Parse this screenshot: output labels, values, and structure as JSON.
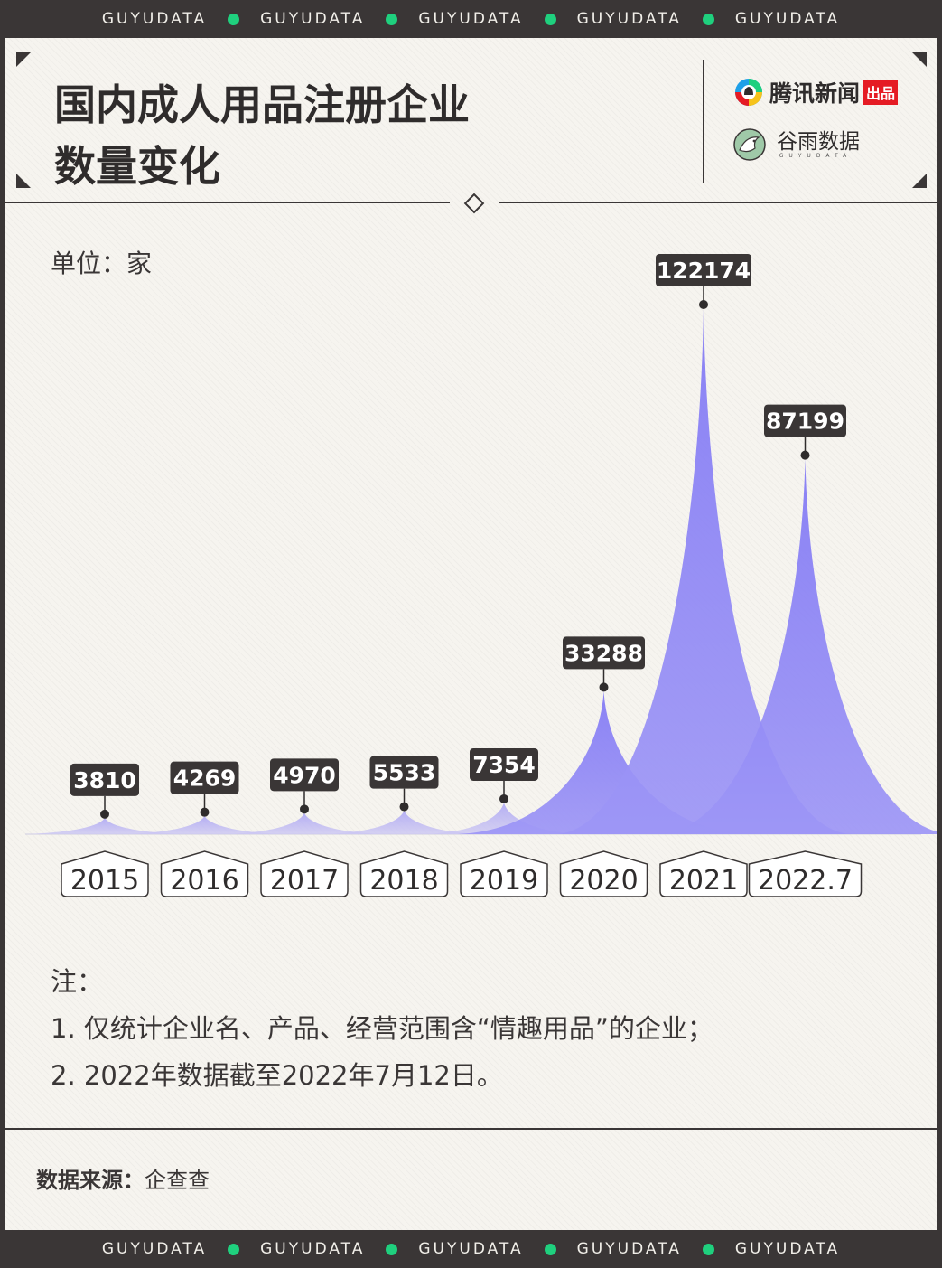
{
  "band": {
    "word": "GUYUDATA",
    "repeat": 5
  },
  "header": {
    "title_line1": "国内成人用品注册企业",
    "title_line2": "数量变化",
    "logo_tencent": "腾讯新闻",
    "logo_tencent_badge": "出品",
    "logo_guyu": "谷雨数据",
    "logo_guyu_sub": "GUYUDATA"
  },
  "unit_label": "单位：家",
  "chart_data": {
    "type": "area",
    "categories": [
      "2015",
      "2016",
      "2017",
      "2018",
      "2019",
      "2020",
      "2021",
      "2022.7"
    ],
    "values": [
      3810,
      4269,
      4970,
      5533,
      7354,
      33288,
      122174,
      87199
    ],
    "value_labels": [
      "3810",
      "4269",
      "4970",
      "5533",
      "7354",
      "33288",
      "122174",
      "87199"
    ],
    "xlabel": "",
    "ylabel": "",
    "grid": false,
    "colors": {
      "fill": "#8b82f7",
      "fill_light": "#b8b1f5",
      "label_bg": "#3a3636",
      "label_text": "#ffffff"
    }
  },
  "notes": {
    "heading": "注：",
    "line1": "1. 仅统计企业名、产品、经营范围含“情趣用品”的企业；",
    "line2": "2. 2022年数据截至2022年7月12日。"
  },
  "source": {
    "label": "数据来源：",
    "value": "企查查"
  },
  "colors": {
    "dark": "#3a3636",
    "accent_dot": "#1fd07e",
    "paper": "#f6f4ef",
    "tencent_red": "#e51b24"
  }
}
